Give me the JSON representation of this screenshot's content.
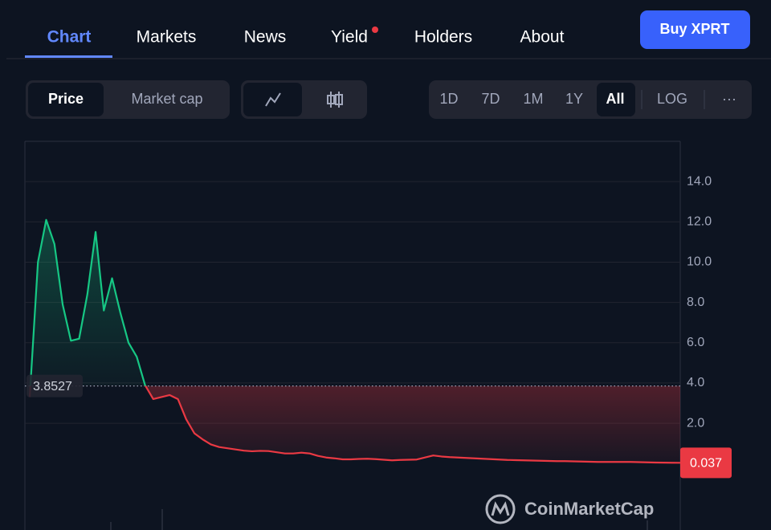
{
  "ui": {
    "tabs": [
      "Chart",
      "Markets",
      "News",
      "Yield",
      "Holders",
      "About"
    ],
    "buy_button": "Buy XPRT",
    "view_toggle": [
      "Price",
      "Market cap"
    ],
    "ranges": [
      "1D",
      "7D",
      "1M",
      "1Y",
      "All"
    ],
    "log_button": "LOG",
    "more_button": "···",
    "watermark": "CoinMarketCap"
  },
  "chart_data": {
    "type": "line",
    "values": [
      3.3,
      10.0,
      12.1,
      10.9,
      7.9,
      6.1,
      6.2,
      8.4,
      11.5,
      7.6,
      9.2,
      7.5,
      6.0,
      5.3,
      3.9,
      3.2,
      3.3,
      3.4,
      3.2,
      2.2,
      1.5,
      1.2,
      0.95,
      0.82,
      0.76,
      0.7,
      0.64,
      0.61,
      0.63,
      0.62,
      0.56,
      0.5,
      0.5,
      0.54,
      0.5,
      0.38,
      0.3,
      0.26,
      0.21,
      0.21,
      0.23,
      0.24,
      0.22,
      0.19,
      0.16,
      0.18,
      0.19,
      0.2,
      0.3,
      0.4,
      0.35,
      0.32,
      0.3,
      0.28,
      0.26,
      0.24,
      0.22,
      0.2,
      0.18,
      0.17,
      0.16,
      0.15,
      0.14,
      0.13,
      0.12,
      0.12,
      0.11,
      0.1,
      0.09,
      0.08,
      0.08,
      0.08,
      0.08,
      0.08,
      0.07,
      0.06,
      0.05,
      0.045,
      0.04,
      0.037
    ],
    "reference_value": 3.8527,
    "color_above": "#16c784",
    "color_below": "#ea3943",
    "ylim": [
      -3.3,
      16
    ],
    "yticks": [
      {
        "value": 2,
        "label": "2.0"
      },
      {
        "value": 4,
        "label": "4.0"
      },
      {
        "value": 6,
        "label": "6.0"
      },
      {
        "value": 8,
        "label": "8.0"
      },
      {
        "value": 10,
        "label": "10.0"
      },
      {
        "value": 12,
        "label": "12.0"
      },
      {
        "value": 14,
        "label": "14.0"
      }
    ],
    "grid": true,
    "log_scale": false
  }
}
